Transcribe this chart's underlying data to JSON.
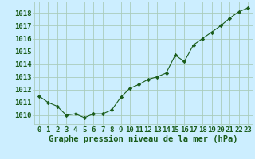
{
  "x": [
    0,
    1,
    2,
    3,
    4,
    5,
    6,
    7,
    8,
    9,
    10,
    11,
    12,
    13,
    14,
    15,
    16,
    17,
    18,
    19,
    20,
    21,
    22,
    23
  ],
  "y": [
    1011.5,
    1011.0,
    1010.7,
    1010.0,
    1010.1,
    1009.8,
    1010.1,
    1010.1,
    1010.4,
    1011.4,
    1012.1,
    1012.4,
    1012.8,
    1013.0,
    1013.3,
    1014.7,
    1014.2,
    1015.5,
    1016.0,
    1016.5,
    1017.0,
    1017.6,
    1018.1,
    1018.4
  ],
  "line_color": "#1a5c1a",
  "marker": "D",
  "marker_size": 2.2,
  "bg_color": "#cceeff",
  "grid_color": "#aaccbb",
  "xlabel": "Graphe pression niveau de la mer (hPa)",
  "xlabel_fontsize": 7.5,
  "ylabel_ticks": [
    1010,
    1011,
    1012,
    1013,
    1014,
    1015,
    1016,
    1017,
    1018
  ],
  "ylim": [
    1009.3,
    1018.9
  ],
  "xlim": [
    -0.5,
    23.5
  ],
  "tick_fontsize": 6.5,
  "label_color": "#1a5c1a"
}
